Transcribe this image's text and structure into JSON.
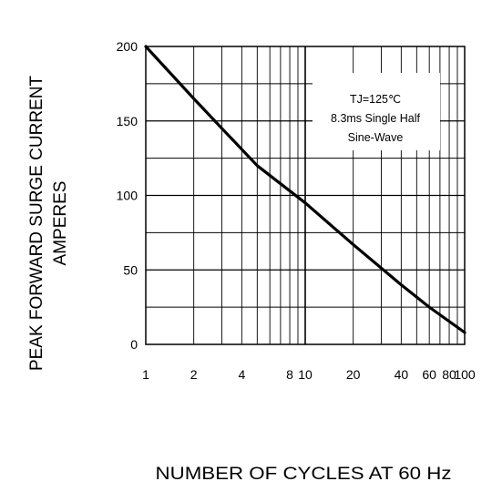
{
  "chart_data": {
    "type": "line",
    "title": "",
    "xlabel": "NUMBER OF CYCLES AT 60 Hz",
    "ylabel_lines": [
      "PEAK FORWARD SURGE CURRENT",
      "AMPERES"
    ],
    "xscale": "log",
    "xlim": [
      1,
      100
    ],
    "ylim": [
      0,
      200
    ],
    "x_ticks": [
      1,
      2,
      4,
      8,
      10,
      20,
      40,
      60,
      80,
      100
    ],
    "x_tick_labels": [
      "1",
      "2",
      "4",
      "8",
      "10",
      "20",
      "40",
      "60",
      "80",
      "100"
    ],
    "y_ticks": [
      0,
      50,
      100,
      150,
      200
    ],
    "y_tick_labels": [
      "0",
      "50",
      "100",
      "150",
      "200"
    ],
    "grid": true,
    "annotation_lines": [
      "TJ=125℃",
      "8.3ms Single Half",
      "Sine-Wave"
    ],
    "series": [
      {
        "x": [
          1,
          2,
          3,
          5,
          10,
          20,
          40,
          60,
          100
        ],
        "y": [
          200,
          165,
          145,
          120,
          95,
          67,
          40,
          25,
          8
        ]
      }
    ],
    "colors": {
      "line": "#000000",
      "grid": "#000000",
      "background": "#ffffff"
    }
  }
}
